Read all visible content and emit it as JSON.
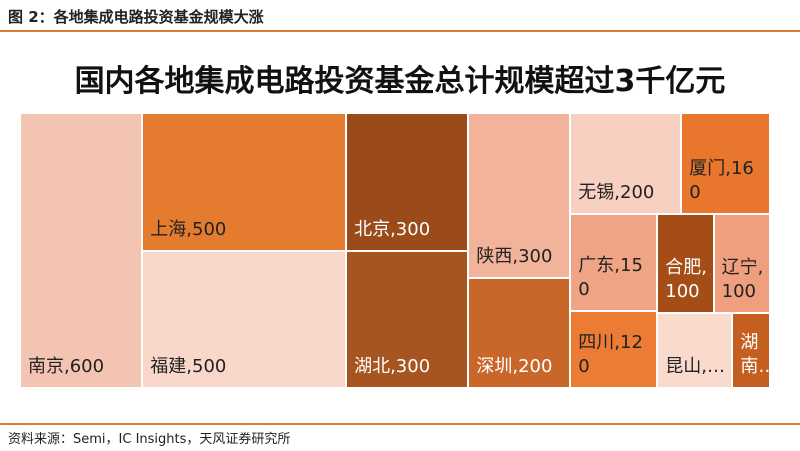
{
  "header": "图 2：各地集成电路投资基金规模大涨",
  "source": "资料来源：Semi，IC Insights，天风证券研究所",
  "chart_data": {
    "type": "treemap",
    "title": "国内各地集成电路投资基金总计规模超过3千亿元",
    "labels": [
      "南京,600",
      "上海,500",
      "福建,500",
      "北京,300",
      "湖北,300",
      "陕西,300",
      "深圳,200",
      "无锡,200",
      "厦门,160",
      "广东,150",
      "四川,120",
      "合肥,100",
      "辽宁,100",
      "昆山,…",
      "湖南…"
    ],
    "values": [
      600,
      500,
      500,
      300,
      300,
      300,
      200,
      200,
      160,
      150,
      120,
      100,
      100,
      100,
      50
    ],
    "colors": [
      "#f4c4b2",
      "#e57b2f",
      "#f9d7cb",
      "#9b4a1a",
      "#a65420",
      "#f1b49b",
      "#c9672a",
      "#f7d0c2",
      "#e8762d",
      "#f0a486",
      "#ec7b34",
      "#a44d17",
      "#ef9e7e",
      "#f9dacd",
      "#c55f20"
    ]
  }
}
